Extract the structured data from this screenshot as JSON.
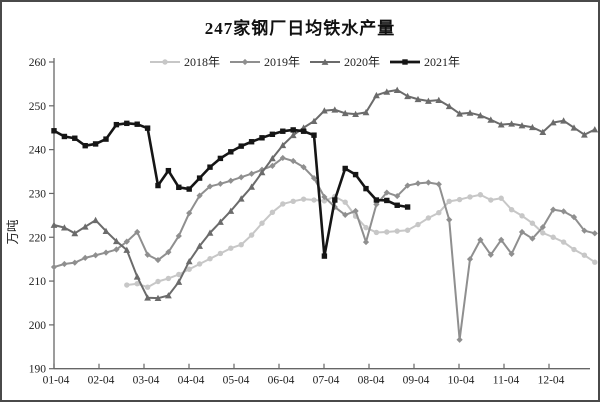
{
  "chart_data": {
    "type": "line",
    "title": "247家钢厂日均铁水产量",
    "ylabel": "万吨",
    "xlabel": "",
    "ylim": [
      190,
      260
    ],
    "ytick_step": 10,
    "yticks": [
      190,
      200,
      210,
      220,
      230,
      240,
      250,
      260
    ],
    "xticks": [
      "01-04",
      "02-04",
      "03-04",
      "04-04",
      "05-04",
      "06-04",
      "07-04",
      "08-04",
      "09-04",
      "10-04",
      "11-04",
      "12-04"
    ],
    "grid": false,
    "legend_position": "top",
    "x_unit": "weekly observations, labeled by month-day",
    "series": [
      {
        "name": "2018年",
        "color": "#c7c7c7",
        "marker": "circle",
        "start_week": 7,
        "values": [
          209.1,
          209.4,
          208.6,
          209.9,
          210.6,
          211.5,
          212.7,
          213.9,
          215.1,
          216.3,
          217.5,
          218.3,
          220.5,
          223.2,
          225.7,
          227.6,
          228.2,
          228.7,
          228.5,
          228.3,
          229.3,
          228.0,
          224.8,
          222.2,
          221.1,
          221.2,
          221.4,
          221.6,
          222.9,
          224.4,
          225.6,
          228.2,
          228.6,
          229.2,
          229.7,
          228.5,
          228.9,
          226.3,
          224.9,
          223.2,
          221.0,
          220.0,
          218.9,
          217.2,
          215.9,
          214.3
        ]
      },
      {
        "name": "2019年",
        "color": "#8f8f8f",
        "marker": "diamond",
        "start_week": 0,
        "values": [
          213.2,
          213.9,
          214.2,
          215.3,
          215.9,
          216.5,
          217.2,
          219.0,
          221.2,
          216.0,
          214.8,
          216.6,
          220.3,
          225.5,
          229.5,
          231.6,
          232.2,
          232.9,
          233.7,
          234.5,
          235.4,
          236.3,
          238.1,
          237.4,
          236.0,
          233.5,
          229.2,
          226.9,
          225.1,
          226.0,
          218.9,
          227.5,
          230.2,
          229.4,
          231.8,
          232.3,
          232.5,
          232.1,
          224.0,
          196.6,
          215.0,
          219.4,
          216.0,
          219.4,
          216.2,
          221.2,
          219.7,
          222.3,
          226.3,
          225.9,
          224.6,
          221.5,
          220.9
        ]
      },
      {
        "name": "2020年",
        "color": "#6b6b6b",
        "marker": "triangle",
        "start_week": 0,
        "values": [
          222.8,
          222.2,
          220.9,
          222.4,
          223.9,
          221.4,
          219.1,
          217.1,
          211.0,
          206.2,
          206.1,
          206.7,
          209.8,
          214.5,
          218.0,
          221.0,
          223.5,
          226.0,
          228.8,
          231.5,
          234.8,
          238.0,
          241.0,
          243.3,
          245.0,
          246.5,
          248.9,
          249.1,
          248.3,
          248.1,
          248.5,
          252.4,
          253.2,
          253.6,
          252.2,
          251.5,
          251.1,
          251.3,
          249.9,
          248.2,
          248.4,
          247.8,
          246.8,
          245.7,
          245.9,
          245.5,
          245.1,
          244.0,
          246.2,
          246.6,
          245.0,
          243.4,
          244.6
        ]
      },
      {
        "name": "2021年",
        "color": "#151515",
        "marker": "square",
        "start_week": 0,
        "values": [
          244.3,
          243.0,
          242.6,
          240.9,
          241.3,
          242.4,
          245.7,
          246.0,
          245.8,
          244.9,
          231.8,
          235.2,
          231.4,
          231.0,
          233.5,
          236.0,
          238.0,
          239.5,
          240.8,
          241.8,
          242.7,
          243.5,
          244.2,
          244.5,
          244.2,
          243.3,
          215.7,
          228.5,
          235.7,
          234.3,
          231.1,
          228.5,
          228.4,
          227.3,
          226.9
        ]
      }
    ]
  }
}
